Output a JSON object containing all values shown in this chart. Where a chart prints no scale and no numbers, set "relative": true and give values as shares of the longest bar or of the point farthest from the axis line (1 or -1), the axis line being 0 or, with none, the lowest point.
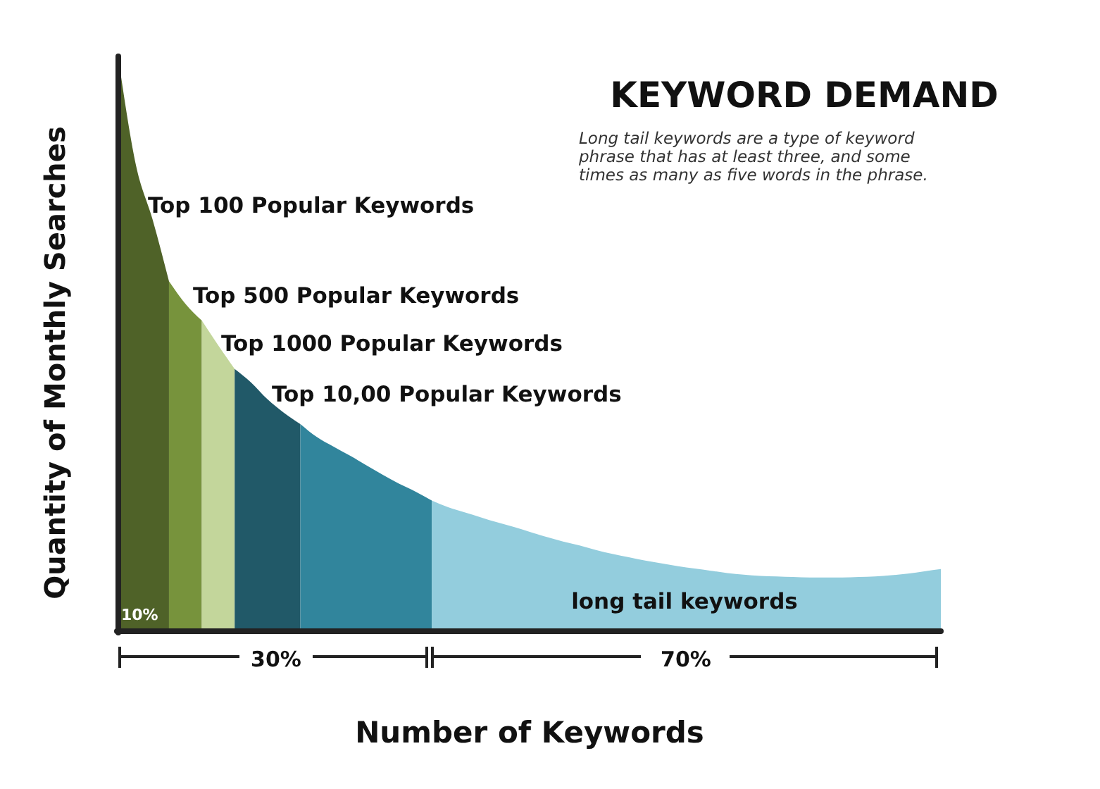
{
  "chart_data": {
    "type": "area",
    "relative": true,
    "title": "KEYWORD DEMAND",
    "subtitle": "Long tail keywords are a type of keyword phrase that has at least three, and some times as many as five words in the phrase.",
    "xlabel": "Number of Keywords",
    "ylabel": "Quantity of Monthly Searches",
    "annotations": [
      "10%",
      "30%",
      "70%"
    ],
    "categories": [
      null,
      null,
      null,
      null,
      null,
      null,
      null,
      null,
      null,
      null,
      null,
      null,
      null,
      null,
      null,
      null,
      null,
      null,
      null,
      null,
      null,
      null,
      null,
      null,
      null,
      null,
      null,
      null,
      null,
      null,
      null,
      null,
      null,
      null,
      null,
      null,
      null,
      null,
      null,
      null,
      null,
      null,
      null,
      null,
      null,
      null,
      null,
      null,
      null,
      null,
      null
    ],
    "series": [
      {
        "name": "Top 100 Popular Keywords",
        "color": "#4f6228",
        "values": [
          1.0,
          0.825,
          0.73,
          0.62,
          null,
          null,
          null,
          null,
          null,
          null,
          null,
          null,
          null,
          null,
          null,
          null,
          null,
          null,
          null,
          null,
          null,
          null,
          null,
          null,
          null,
          null,
          null,
          null,
          null,
          null,
          null,
          null,
          null,
          null,
          null,
          null,
          null,
          null,
          null,
          null,
          null,
          null,
          null,
          null,
          null,
          null,
          null,
          null,
          null,
          null,
          null
        ]
      },
      {
        "name": "Top 500 Popular Keywords",
        "color": "#77933c",
        "values": [
          null,
          null,
          null,
          0.62,
          0.58,
          0.55,
          null,
          null,
          null,
          null,
          null,
          null,
          null,
          null,
          null,
          null,
          null,
          null,
          null,
          null,
          null,
          null,
          null,
          null,
          null,
          null,
          null,
          null,
          null,
          null,
          null,
          null,
          null,
          null,
          null,
          null,
          null,
          null,
          null,
          null,
          null,
          null,
          null,
          null,
          null,
          null,
          null,
          null,
          null,
          null,
          null
        ]
      },
      {
        "name": "Top 1000  Popular Keywords",
        "color": "#c3d69b",
        "values": [
          null,
          null,
          null,
          null,
          null,
          0.55,
          0.506,
          0.464,
          null,
          null,
          null,
          null,
          null,
          null,
          null,
          null,
          null,
          null,
          null,
          null,
          null,
          null,
          null,
          null,
          null,
          null,
          null,
          null,
          null,
          null,
          null,
          null,
          null,
          null,
          null,
          null,
          null,
          null,
          null,
          null,
          null,
          null,
          null,
          null,
          null,
          null,
          null,
          null,
          null,
          null,
          null
        ]
      },
      {
        "name": "Top 10,00  Popular Keywords",
        "color": "#215968",
        "values": [
          null,
          null,
          null,
          null,
          null,
          null,
          null,
          0.464,
          0.44,
          0.41,
          0.386,
          0.366,
          null,
          null,
          null,
          null,
          null,
          null,
          null,
          null,
          null,
          null,
          null,
          null,
          null,
          null,
          null,
          null,
          null,
          null,
          null,
          null,
          null,
          null,
          null,
          null,
          null,
          null,
          null,
          null,
          null,
          null,
          null,
          null,
          null,
          null,
          null,
          null,
          null,
          null,
          null
        ]
      },
      {
        "color": "#31859c",
        "values": [
          null,
          null,
          null,
          null,
          null,
          null,
          null,
          null,
          null,
          null,
          null,
          0.366,
          0.343,
          0.326,
          0.31,
          0.293,
          0.276,
          0.26,
          0.246,
          0.23,
          null,
          null,
          null,
          null,
          null,
          null,
          null,
          null,
          null,
          null,
          null,
          null,
          null,
          null,
          null,
          null,
          null,
          null,
          null,
          null,
          null,
          null,
          null,
          null,
          null,
          null,
          null,
          null,
          null,
          null,
          null
        ]
      },
      {
        "name": "long tail keywords",
        "color": "#93cddd",
        "values": [
          null,
          null,
          null,
          null,
          null,
          null,
          null,
          null,
          null,
          null,
          null,
          null,
          null,
          null,
          null,
          null,
          null,
          null,
          null,
          0.23,
          0.218,
          0.209,
          0.2,
          0.191,
          0.183,
          0.174,
          0.165,
          0.157,
          0.15,
          0.142,
          0.135,
          0.129,
          0.123,
          0.118,
          0.113,
          0.109,
          0.105,
          0.101,
          0.098,
          0.096,
          0.095,
          0.094,
          0.093,
          0.093,
          0.093,
          0.094,
          0.095,
          0.097,
          0.1,
          0.104,
          0.108
        ]
      }
    ]
  }
}
